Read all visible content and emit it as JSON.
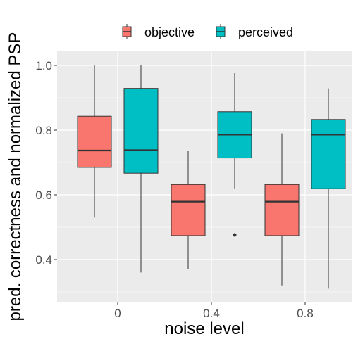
{
  "chart_data": {
    "type": "boxplot",
    "title": "",
    "xlabel": "noise level",
    "ylabel": "pred. correctness and normalized PSP",
    "categories": [
      "0",
      "0.4",
      "0.8"
    ],
    "ylim": [
      0.3,
      1.05
    ],
    "yticks": [
      0.4,
      0.6,
      0.8,
      1.0
    ],
    "ytick_labels": [
      "0.4",
      "0.6",
      "0.8",
      "1.0"
    ],
    "grid": true,
    "legend_position": "top",
    "series": [
      {
        "name": "objective",
        "color": "#F8766D",
        "boxes": [
          {
            "category": "0",
            "whisker_low": 0.53,
            "q1": 0.685,
            "median": 0.737,
            "q3": 0.843,
            "whisker_high": 1.0,
            "outliers": []
          },
          {
            "category": "0.4",
            "whisker_low": 0.37,
            "q1": 0.474,
            "median": 0.579,
            "q3": 0.632,
            "whisker_high": 0.737,
            "outliers": []
          },
          {
            "category": "0.8",
            "whisker_low": 0.32,
            "q1": 0.474,
            "median": 0.579,
            "q3": 0.632,
            "whisker_high": 0.79,
            "outliers": []
          }
        ]
      },
      {
        "name": "perceived",
        "color": "#00BFC4",
        "boxes": [
          {
            "category": "0",
            "whisker_low": 0.36,
            "q1": 0.667,
            "median": 0.738,
            "q3": 0.929,
            "whisker_high": 1.0,
            "outliers": []
          },
          {
            "category": "0.4",
            "whisker_low": 0.62,
            "q1": 0.714,
            "median": 0.786,
            "q3": 0.857,
            "whisker_high": 0.976,
            "outliers": [
              0.476
            ]
          },
          {
            "category": "0.8",
            "whisker_low": 0.31,
            "q1": 0.619,
            "median": 0.786,
            "q3": 0.833,
            "whisker_high": 0.929,
            "outliers": []
          }
        ]
      }
    ]
  }
}
